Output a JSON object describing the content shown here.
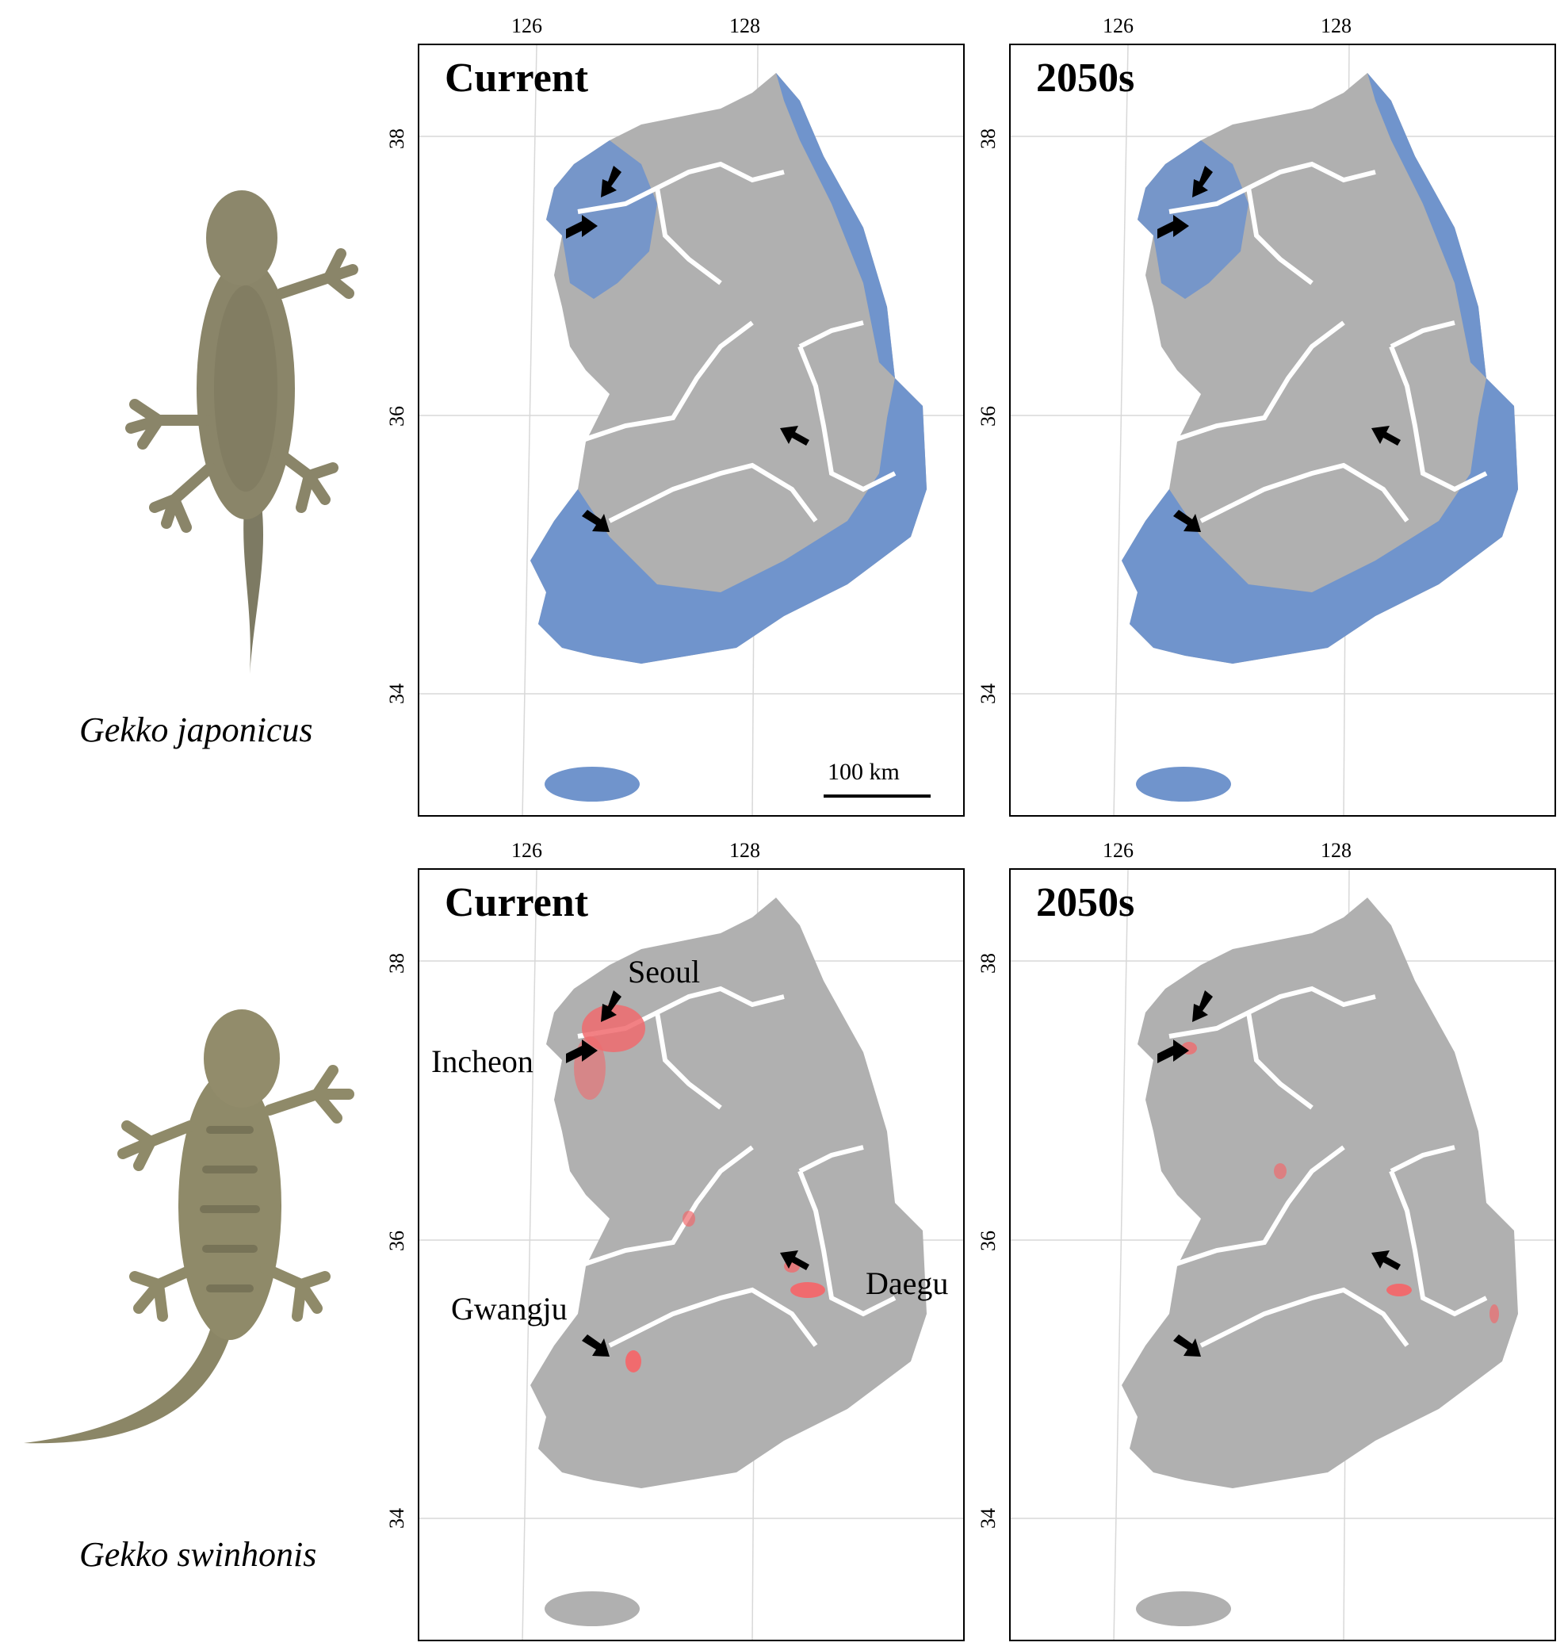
{
  "colors": {
    "land": "#b0b0b0",
    "suitable_japonicus": "#7094cc",
    "suitable_swinhonis": "#f06b6e",
    "river": "#ffffff",
    "grid": "#d8d8d8",
    "arrow": "#000000"
  },
  "axes": {
    "lon_ticks": [
      "126",
      "128"
    ],
    "lat_ticks": [
      "38",
      "36",
      "34"
    ]
  },
  "scale_bar": {
    "label": "100 km"
  },
  "rows": [
    {
      "species": "Gekko japonicus",
      "panels": [
        {
          "title": "Current",
          "suitable_color": "suitable_japonicus"
        },
        {
          "title": "2050s",
          "suitable_color": "suitable_japonicus"
        }
      ]
    },
    {
      "species": "Gekko swinhonis",
      "panels": [
        {
          "title": "Current",
          "suitable_color": "suitable_swinhonis",
          "cities": [
            "Seoul",
            "Incheon",
            "Gwangju",
            "Daegu"
          ]
        },
        {
          "title": "2050s",
          "suitable_color": "suitable_swinhonis"
        }
      ]
    }
  ]
}
